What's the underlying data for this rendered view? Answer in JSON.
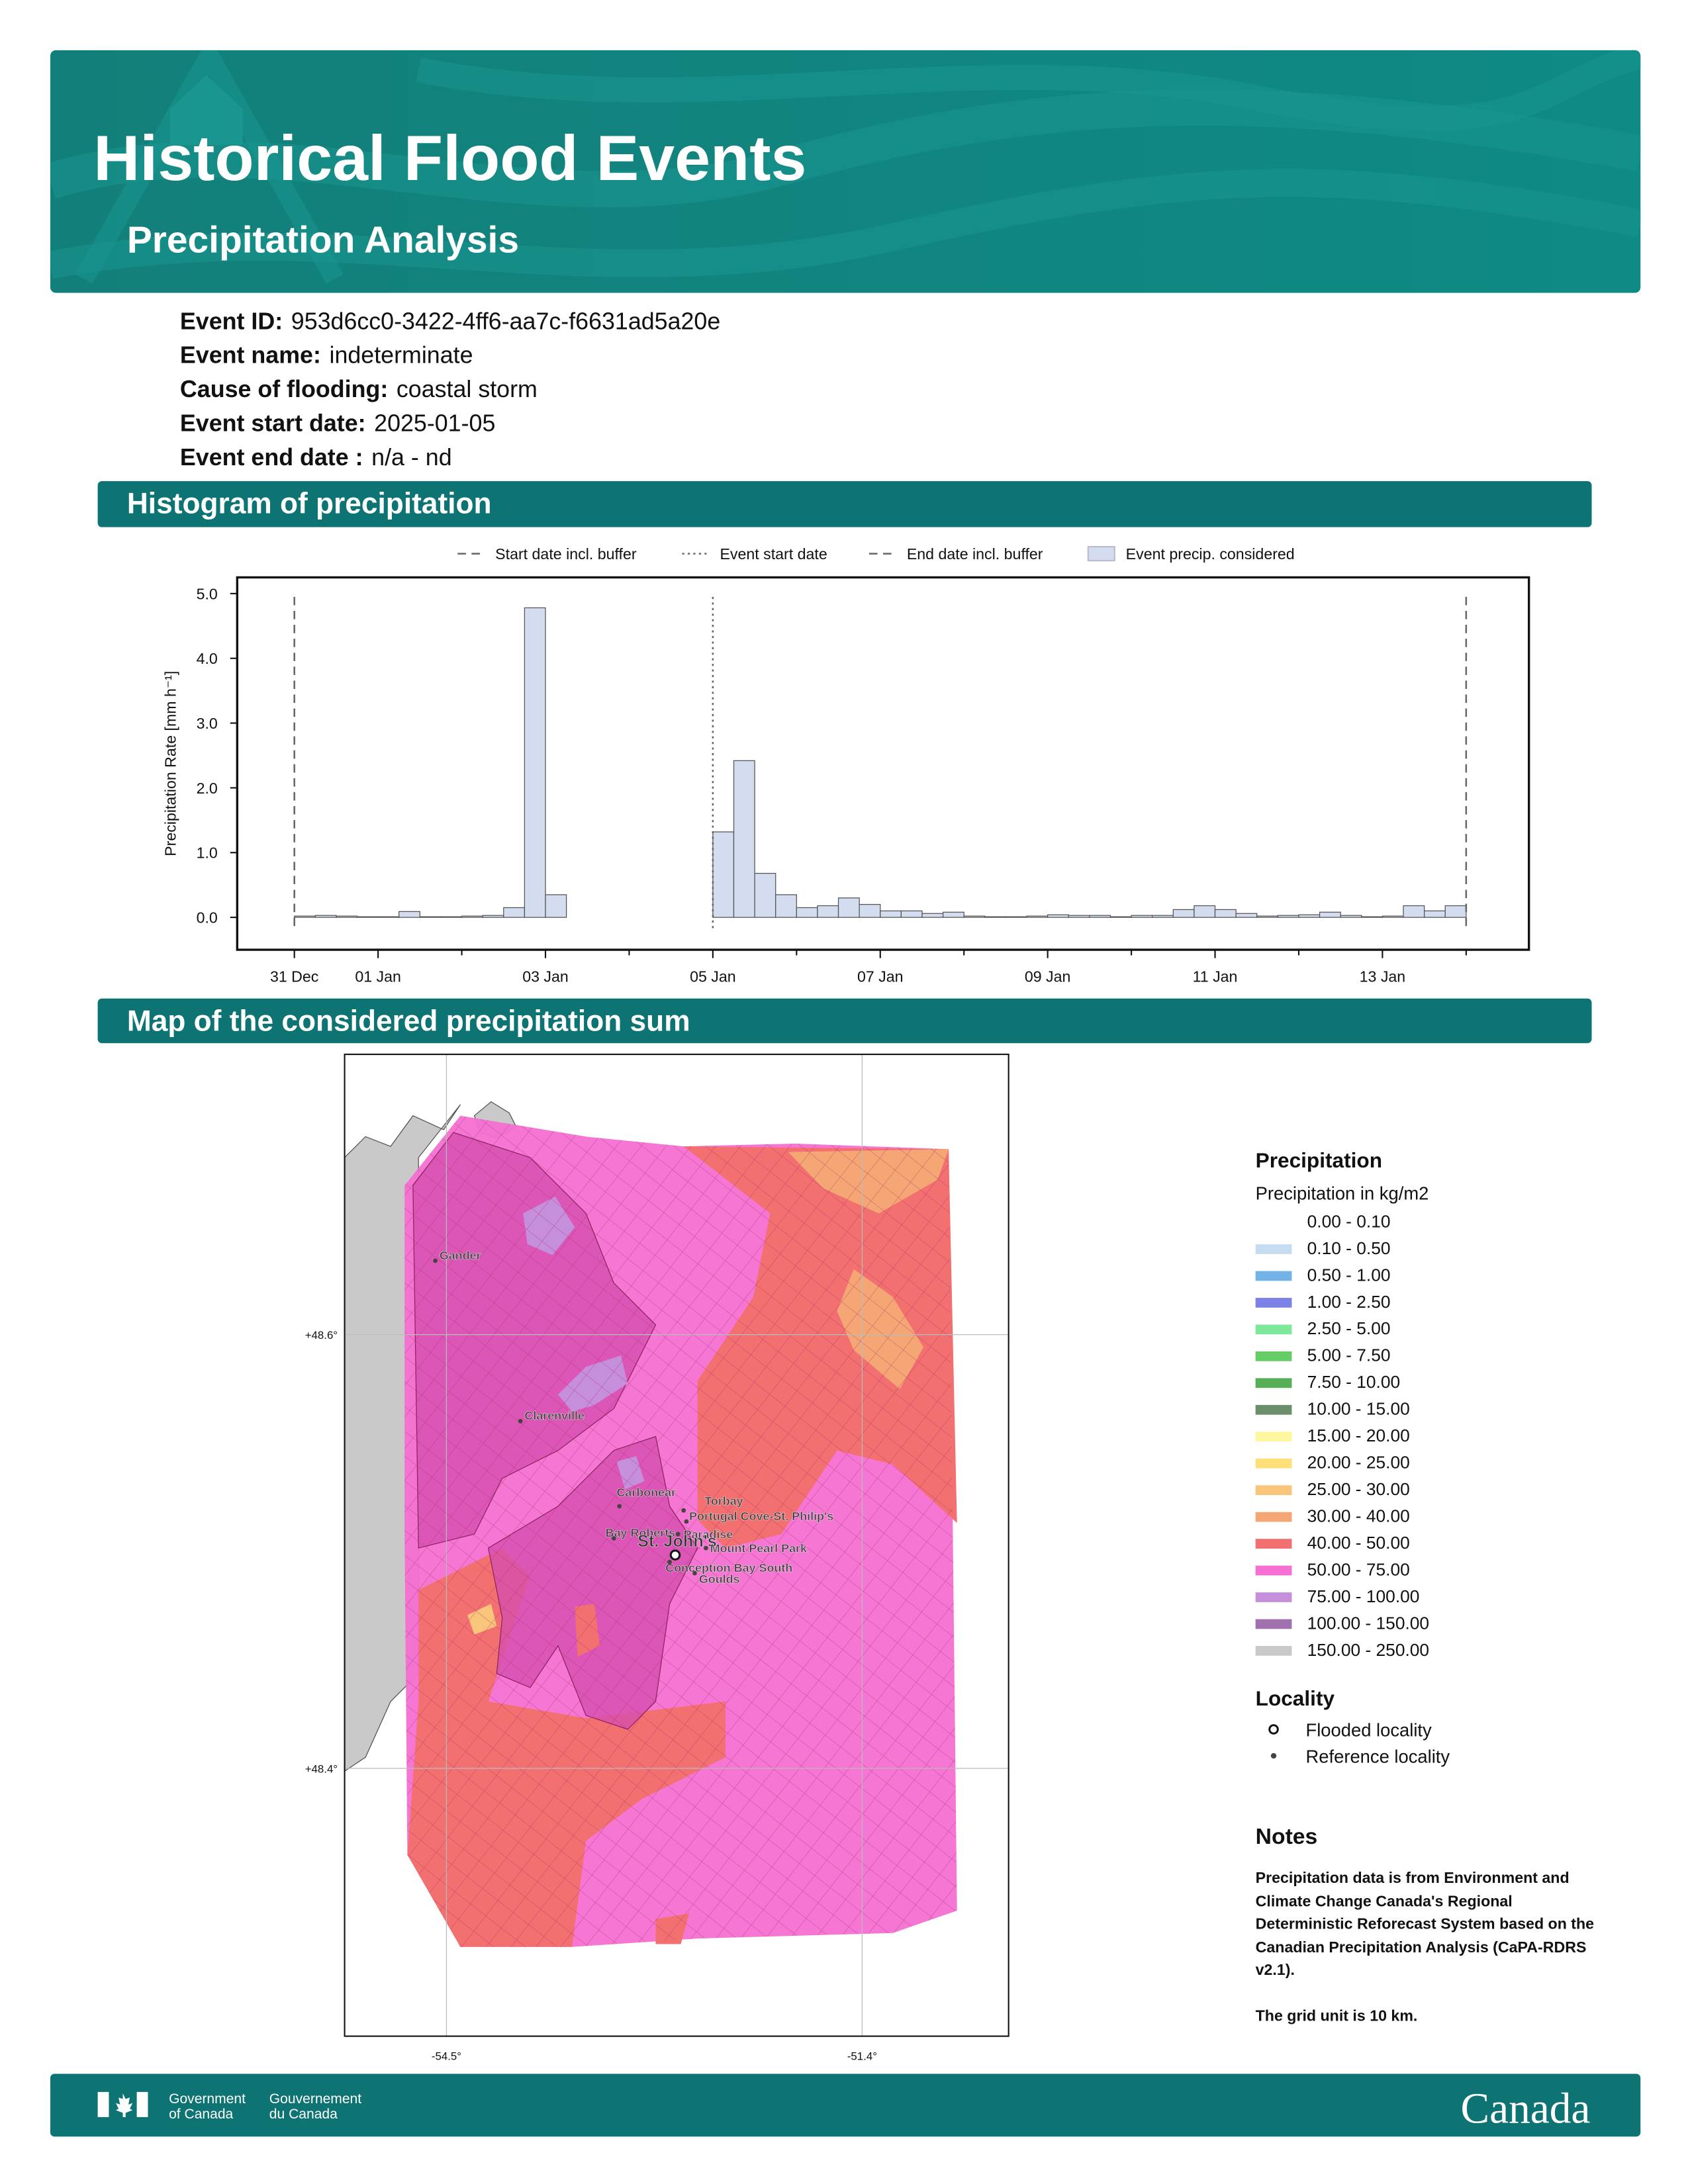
{
  "header": {
    "title": "Historical Flood Events",
    "subtitle": "Precipitation Analysis"
  },
  "event_details": [
    {
      "label": "Event ID:",
      "value": "953d6cc0-3422-4ff6-aa7c-f6631ad5a20e"
    },
    {
      "label": "Event name:",
      "value": "indeterminate"
    },
    {
      "label": "Cause of flooding:",
      "value": "coastal storm"
    },
    {
      "label": "Event start date:",
      "value": "2025-01-05"
    },
    {
      "label": "Event end date :",
      "value": "n/a - nd"
    }
  ],
  "histogram": {
    "section_title": "Histogram of precipitation",
    "chart_data": {
      "type": "histogram",
      "ylabel": "Precipitation Rate [mm h⁻¹]",
      "series_name": "Event precip. considered",
      "color": "#d3ddef",
      "edge_color": "#555555",
      "reference_lines": [
        {
          "name": "Start date incl. buffer",
          "x": 0,
          "style": "dashed"
        },
        {
          "name": "Event start date",
          "x": 5,
          "style": "dotted"
        },
        {
          "name": "End date incl. buffer",
          "x": 14,
          "style": "dashed"
        }
      ],
      "bins": [
        0,
        0.25,
        0.5,
        0.75,
        1,
        1.25,
        1.5,
        1.75,
        2,
        2.25,
        2.5,
        2.75,
        3,
        3.25,
        3.5,
        3.75,
        4,
        4.25,
        4.5,
        4.75,
        5,
        5.25,
        5.5,
        5.75,
        6,
        6.25,
        6.5,
        6.75,
        7,
        7.25,
        7.5,
        7.75,
        8,
        8.25,
        8.5,
        8.75,
        9,
        9.25,
        9.5,
        9.75,
        10,
        10.25,
        10.5,
        10.75,
        11,
        11.25,
        11.5,
        11.75,
        12,
        12.25,
        12.5,
        12.75,
        13,
        13.25,
        13.5,
        13.75,
        14
      ],
      "values": [
        0.02,
        0.03,
        0.02,
        0.01,
        0.01,
        0.09,
        0.01,
        0.01,
        0.02,
        0.03,
        0.15,
        4.78,
        0.35,
        0,
        0,
        0,
        0,
        0,
        0,
        0,
        1.32,
        2.42,
        0.68,
        0.35,
        0.15,
        0.18,
        0.3,
        0.2,
        0.1,
        0.1,
        0.06,
        0.08,
        0.02,
        0.01,
        0.01,
        0.02,
        0.04,
        0.03,
        0.03,
        0.01,
        0.03,
        0.03,
        0.12,
        0.18,
        0.12,
        0.06,
        0.02,
        0.03,
        0.04,
        0.08,
        0.03,
        0.01,
        0.02,
        0.18,
        0.1,
        0.18
      ],
      "xlim": [
        -0.683,
        14.75
      ],
      "ylim": [
        -0.5,
        5.25
      ],
      "yticks": [
        {
          "value": 0,
          "label": "0.0"
        },
        {
          "value": 1,
          "label": "1.0"
        },
        {
          "value": 2,
          "label": "2.0"
        },
        {
          "value": 3,
          "label": "3.0"
        },
        {
          "value": 4,
          "label": "4.0"
        },
        {
          "value": 5,
          "label": "5.0"
        }
      ],
      "xticks": [
        {
          "value": 0,
          "label": "31 Dec"
        },
        {
          "value": 1,
          "label": "01 Jan"
        },
        {
          "value": 3,
          "label": "03 Jan"
        },
        {
          "value": 5,
          "label": "05 Jan"
        },
        {
          "value": 7,
          "label": "07 Jan"
        },
        {
          "value": 9,
          "label": "09 Jan"
        },
        {
          "value": 11,
          "label": "11 Jan"
        },
        {
          "value": 13,
          "label": "13 Jan"
        }
      ],
      "xticks_minor": [
        2,
        4,
        6,
        8,
        10,
        12,
        14
      ]
    }
  },
  "map": {
    "section_title": "Map of the considered precipitation sum",
    "lat_ticks": [
      "+48.6°",
      "+48.4°"
    ],
    "lon_ticks": [
      "-54.5°",
      "-51.4°"
    ],
    "localities": [
      {
        "name": "Gander",
        "type": "reference"
      },
      {
        "name": "Clarenville",
        "type": "reference"
      },
      {
        "name": "Carbonear",
        "type": "reference"
      },
      {
        "name": "Torbay",
        "type": "reference"
      },
      {
        "name": "Portugal Cove-St. Philip's",
        "type": "reference"
      },
      {
        "name": "Bay Roberts",
        "type": "reference"
      },
      {
        "name": "Paradise",
        "type": "reference"
      },
      {
        "name": "St. John's",
        "type": "flooded"
      },
      {
        "name": "Mount Pearl Park",
        "type": "reference"
      },
      {
        "name": "Conception Bay South",
        "type": "reference"
      },
      {
        "name": "Goulds",
        "type": "reference"
      }
    ]
  },
  "legend": {
    "title": "Precipitation",
    "subtitle": "Precipitation in kg/m2",
    "classes": [
      {
        "label": "0.00 - 0.10",
        "color": "#ffffff"
      },
      {
        "label": "0.10 - 0.50",
        "color": "#c6dcf2"
      },
      {
        "label": "0.50 - 1.00",
        "color": "#72b4ea"
      },
      {
        "label": "1.00 - 2.50",
        "color": "#7d83e6"
      },
      {
        "label": "2.50 - 5.00",
        "color": "#7ee89a"
      },
      {
        "label": "5.00 - 7.50",
        "color": "#66cc66"
      },
      {
        "label": "7.50 - 10.00",
        "color": "#56ae56"
      },
      {
        "label": "10.00 - 15.00",
        "color": "#6a8f6a"
      },
      {
        "label": "15.00 - 20.00",
        "color": "#fff7a0"
      },
      {
        "label": "20.00 - 25.00",
        "color": "#fde07a"
      },
      {
        "label": "25.00 - 30.00",
        "color": "#f8c57a"
      },
      {
        "label": "30.00 - 40.00",
        "color": "#f4a774"
      },
      {
        "label": "40.00 - 50.00",
        "color": "#f27070"
      },
      {
        "label": "50.00 - 75.00",
        "color": "#f66fd2"
      },
      {
        "label": "75.00 - 100.00",
        "color": "#c58fdc"
      },
      {
        "label": "100.00 - 150.00",
        "color": "#a071ae"
      },
      {
        "label": "150.00 - 250.00",
        "color": "#c9c9c9"
      }
    ],
    "locality_title": "Locality",
    "locality_items": [
      "Flooded locality",
      "Reference locality"
    ]
  },
  "notes": {
    "title": "Notes",
    "paragraphs": [
      "Precipitation data is from Environment and Climate Change Canada's Regional Deterministic Reforecast System based on the Canadian Precipitation Analysis (CaPA-RDRS v2.1).",
      "The grid unit is 10 km."
    ]
  },
  "footer": {
    "gov_en": [
      "Government",
      "of Canada"
    ],
    "gov_fr": [
      "Gouvernement",
      "du Canada"
    ],
    "wordmark": "Canada"
  }
}
